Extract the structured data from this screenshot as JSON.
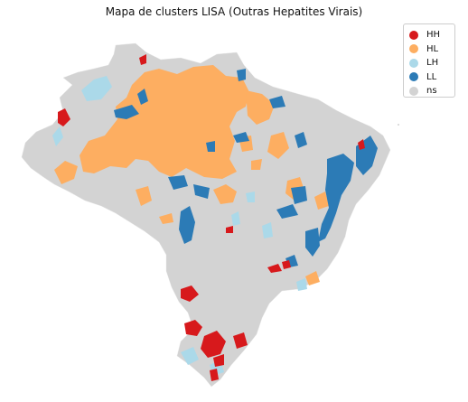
{
  "map": {
    "title": "Mapa de clusters LISA (Outras Hepatites Virais)",
    "colors": {
      "HH": "#d7191c",
      "HL": "#fdae61",
      "LH": "#abd9e9",
      "LL": "#2c7bb6",
      "ns": "#d3d3d3"
    }
  },
  "legend": {
    "items": [
      {
        "label": "HH",
        "color": "#d7191c"
      },
      {
        "label": "HL",
        "color": "#fdae61"
      },
      {
        "label": "LH",
        "color": "#abd9e9"
      },
      {
        "label": "LL",
        "color": "#2c7bb6"
      },
      {
        "label": "ns",
        "color": "#d3d3d3"
      }
    ]
  }
}
